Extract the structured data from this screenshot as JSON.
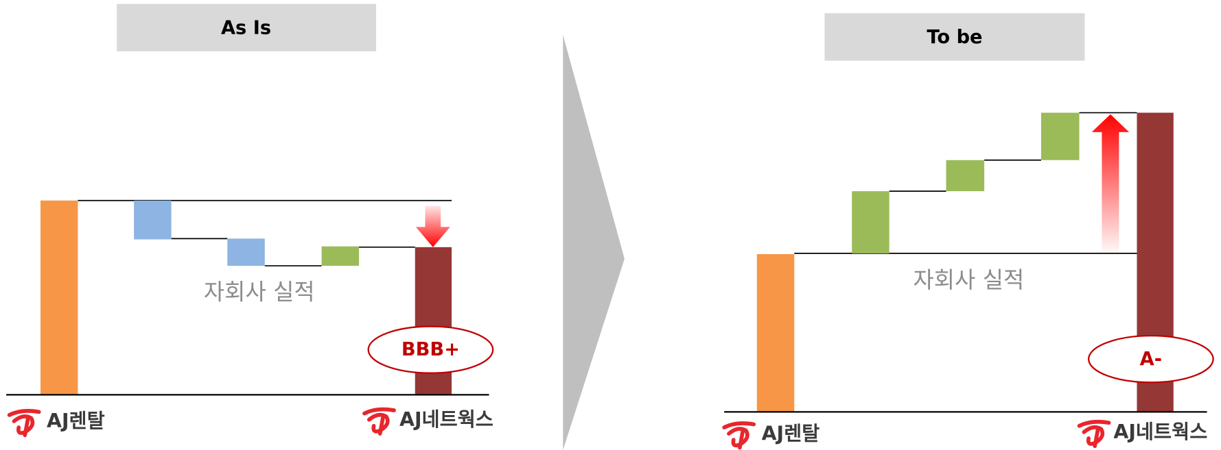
{
  "left": {
    "title": "As Is",
    "note": "자회사 실적",
    "rating": "BBB+",
    "logo_start": "AJ렌탈",
    "logo_end": "AJ네트웍스"
  },
  "right": {
    "title": "To be",
    "note": "자회사 실적",
    "rating": "A-",
    "logo_start": "AJ렌탈",
    "logo_end": "AJ네트웍스"
  }
}
